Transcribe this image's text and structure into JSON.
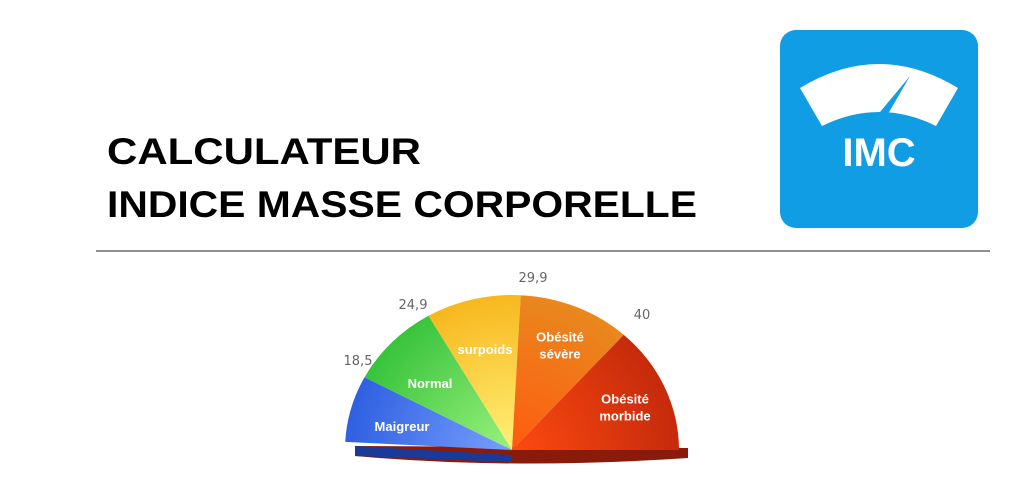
{
  "header": {
    "title_lines": [
      "CALCULATEUR",
      "INDICE MASSE CORPORELLE"
    ]
  },
  "logo": {
    "label": "IMC"
  },
  "gauge": {
    "thresholds": [
      "18,5",
      "24,9",
      "29,9",
      "40"
    ],
    "segments": [
      {
        "label_lines": [
          "Maigreur"
        ]
      },
      {
        "label_lines": [
          "Normal"
        ]
      },
      {
        "label_lines": [
          "surpoids"
        ]
      },
      {
        "label_lines": [
          "Obésité",
          "sévère"
        ]
      },
      {
        "label_lines": [
          "Obésité",
          "morbide"
        ]
      }
    ]
  }
}
